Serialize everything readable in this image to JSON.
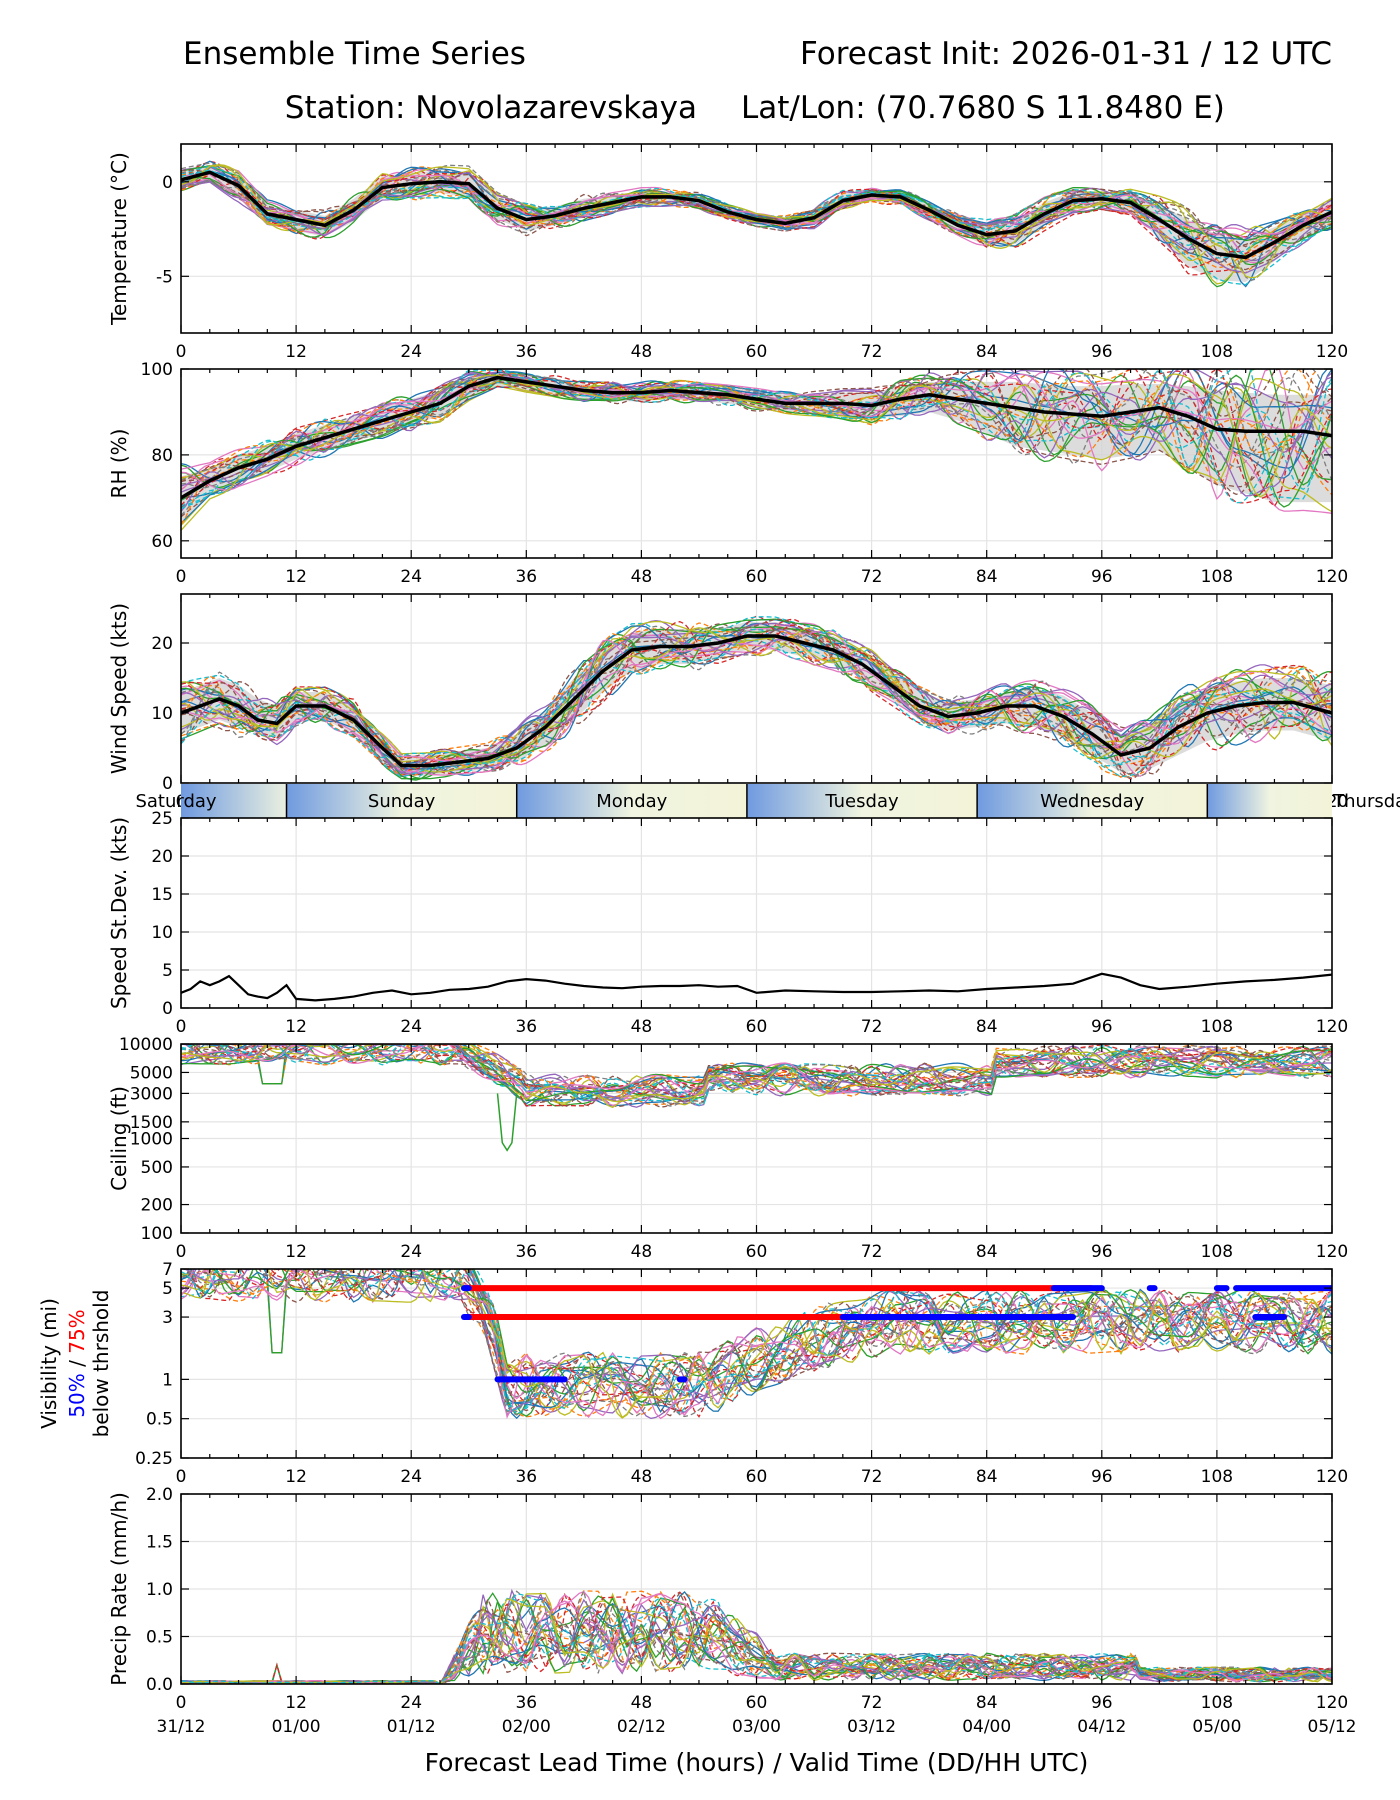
{
  "header": {
    "title_left": "Ensemble Time Series",
    "title_right": "Forecast Init: 2026-01-31 / 12 UTC",
    "station": "Station: Novolazarevskaya",
    "latlon": "Lat/Lon: (70.7680 S 11.8480 E)"
  },
  "chart_data": [
    {
      "id": "temperature",
      "type": "line",
      "ylabel": "Temperature (°C)",
      "xlim": [
        0,
        120
      ],
      "ylim": [
        -8,
        2
      ],
      "ytick_values": [
        0,
        -5
      ],
      "ytick_labels": [
        "0",
        "-5"
      ],
      "xtick_labels": [
        "0",
        "12",
        "24",
        "36",
        "48",
        "60",
        "72",
        "84",
        "96",
        "108",
        "120"
      ],
      "ensemble_mean": {
        "x": [
          0,
          3,
          6,
          9,
          12,
          15,
          18,
          21,
          24,
          27,
          30,
          33,
          36,
          39,
          42,
          45,
          48,
          51,
          54,
          57,
          60,
          63,
          66,
          69,
          72,
          75,
          78,
          81,
          84,
          87,
          90,
          93,
          96,
          99,
          102,
          105,
          108,
          111,
          114,
          117,
          120
        ],
        "y": [
          0.1,
          0.5,
          -0.2,
          -1.7,
          -2.0,
          -2.3,
          -1.5,
          -0.3,
          -0.1,
          0.0,
          -0.1,
          -1.4,
          -2.0,
          -1.8,
          -1.4,
          -1.1,
          -0.8,
          -0.8,
          -1.0,
          -1.6,
          -2.0,
          -2.2,
          -1.9,
          -1.0,
          -0.7,
          -0.8,
          -1.5,
          -2.3,
          -2.8,
          -2.6,
          -1.7,
          -1.0,
          -0.9,
          -1.1,
          -2.0,
          -3.0,
          -3.8,
          -4.0,
          -3.2,
          -2.3,
          -1.6
        ]
      },
      "spread_low": [
        -0.3,
        0.1,
        -0.8,
        -2.2,
        -2.6,
        -2.9,
        -2.1,
        -0.9,
        -0.7,
        -0.6,
        -0.8,
        -2.0,
        -2.6,
        -2.3,
        -1.9,
        -1.5,
        -1.2,
        -1.2,
        -1.3,
        -1.9,
        -2.3,
        -2.5,
        -2.3,
        -1.4,
        -1.0,
        -1.1,
        -1.9,
        -2.7,
        -3.4,
        -3.3,
        -2.3,
        -1.5,
        -1.3,
        -1.6,
        -3.0,
        -4.5,
        -5.2,
        -5.3,
        -4.2,
        -3.0,
        -2.2
      ],
      "spread_high": [
        0.5,
        0.9,
        0.4,
        -1.2,
        -1.5,
        -1.8,
        -0.9,
        0.3,
        0.5,
        0.6,
        0.5,
        -0.8,
        -1.4,
        -1.3,
        -0.9,
        -0.7,
        -0.5,
        -0.5,
        -0.7,
        -1.3,
        -1.8,
        -1.9,
        -1.5,
        -0.6,
        -0.4,
        -0.5,
        -1.1,
        -1.9,
        -2.3,
        -2.0,
        -1.1,
        -0.5,
        -0.5,
        -0.6,
        -1.2,
        -2.0,
        -2.8,
        -3.0,
        -2.4,
        -1.7,
        -1.0
      ]
    },
    {
      "id": "rh",
      "type": "line",
      "ylabel": "RH (%)",
      "xlim": [
        0,
        120
      ],
      "ylim": [
        56,
        100
      ],
      "ytick_values": [
        60,
        80,
        100
      ],
      "ytick_labels": [
        "60",
        "80",
        "100"
      ],
      "xtick_labels": [
        "0",
        "12",
        "24",
        "36",
        "48",
        "60",
        "72",
        "84",
        "96",
        "108",
        "120"
      ],
      "ensemble_mean": {
        "x": [
          0,
          3,
          6,
          9,
          12,
          15,
          18,
          21,
          24,
          27,
          30,
          33,
          36,
          39,
          42,
          45,
          48,
          51,
          54,
          57,
          60,
          63,
          66,
          69,
          72,
          75,
          78,
          81,
          84,
          87,
          90,
          93,
          96,
          99,
          102,
          105,
          108,
          111,
          114,
          117,
          120
        ],
        "y": [
          70,
          74,
          77,
          79,
          82,
          84,
          86,
          88,
          90,
          92,
          96,
          98,
          97,
          96,
          95,
          94.5,
          94.5,
          95,
          94.5,
          94,
          93,
          92,
          92,
          92,
          91.5,
          93,
          94,
          93,
          92,
          91,
          90,
          89.5,
          89,
          90,
          91,
          89,
          86,
          85.5,
          85.5,
          85.5,
          84.5
        ]
      },
      "spread_low": [
        64,
        71,
        74,
        76,
        79,
        81,
        83,
        85,
        87,
        89,
        93,
        96,
        95,
        94,
        93,
        92.5,
        92.5,
        93,
        92.5,
        92,
        91,
        90,
        90,
        89.5,
        88.5,
        89,
        90,
        88,
        85,
        82,
        81,
        80,
        79,
        80,
        81,
        77,
        73,
        71,
        69,
        69,
        69
      ],
      "spread_high": [
        75,
        77,
        80,
        82,
        85,
        87,
        89,
        91,
        93,
        95,
        98,
        99,
        98.5,
        97.5,
        96.5,
        96,
        96,
        96.5,
        96,
        95.5,
        95,
        94,
        94,
        94.5,
        94.5,
        96,
        97,
        97,
        97,
        97,
        96.5,
        96,
        96,
        96.5,
        96.5,
        96,
        95,
        94.5,
        94,
        94,
        94
      ]
    },
    {
      "id": "wind_speed",
      "type": "line",
      "ylabel": "Wind Speed (kts)",
      "xlim": [
        0,
        120
      ],
      "ylim": [
        0,
        27
      ],
      "ytick_values": [
        0,
        10,
        20
      ],
      "ytick_labels": [
        "0",
        "10",
        "20"
      ],
      "xtick_labels": [
        "0",
        "12",
        "24",
        "36",
        "48",
        "60",
        "72",
        "84",
        "96",
        "108",
        "120"
      ],
      "ensemble_mean": {
        "x": [
          0,
          2,
          4,
          6,
          8,
          10,
          12,
          15,
          18,
          21,
          23,
          26,
          29,
          32,
          35,
          38,
          41,
          44,
          47,
          50,
          53,
          56,
          59,
          62,
          65,
          68,
          71,
          74,
          77,
          80,
          83,
          86,
          89,
          92,
          95,
          98,
          101,
          104,
          107,
          110,
          113,
          116,
          120
        ],
        "y": [
          10,
          11,
          12,
          11,
          9,
          8.5,
          11,
          11,
          9,
          5,
          2.5,
          2.5,
          3,
          3.5,
          5,
          8,
          12,
          16,
          19,
          19.5,
          19.5,
          20,
          21,
          21,
          20,
          19,
          17,
          14,
          11,
          9.5,
          10,
          11,
          11,
          9.5,
          7,
          4,
          5,
          8,
          10,
          11,
          11.5,
          11.5,
          10
        ]
      },
      "spread_low": [
        7,
        8,
        9,
        8,
        7,
        6.5,
        9,
        9,
        7,
        3,
        1,
        1,
        1.5,
        2,
        3,
        5.5,
        9,
        13,
        16,
        17,
        17,
        18,
        19,
        19,
        18,
        17,
        15,
        12,
        9,
        7.5,
        8,
        8.5,
        8,
        6.5,
        4,
        1.5,
        2,
        4,
        6,
        7,
        7.5,
        7.5,
        6
      ],
      "spread_high": [
        13,
        14,
        15,
        14,
        12,
        11,
        13,
        13,
        11,
        7,
        4,
        4,
        4.5,
        5,
        7,
        10.5,
        15,
        19,
        21.5,
        22,
        22,
        22,
        23,
        23,
        22,
        21,
        19,
        16,
        13,
        11.5,
        12,
        13,
        13.5,
        12.5,
        10,
        7,
        8.5,
        11.5,
        13.5,
        14.5,
        15,
        15,
        14
      ],
      "days": [
        "Saturday",
        "Sunday",
        "Monday",
        "Tuesday",
        "Wednesday",
        "Thursday"
      ]
    },
    {
      "id": "speed_stdev",
      "type": "line",
      "ylabel": "Speed St.Dev. (kts)",
      "xlim": [
        0,
        120
      ],
      "ylim": [
        0,
        25
      ],
      "ytick_values": [
        0,
        5,
        10,
        15,
        20,
        25
      ],
      "ytick_labels": [
        "0",
        "5",
        "10",
        "15",
        "20",
        "25"
      ],
      "xtick_labels": [
        "0",
        "12",
        "24",
        "36",
        "48",
        "60",
        "72",
        "84",
        "96",
        "108",
        "120"
      ],
      "series": {
        "x": [
          0,
          1,
          2,
          3,
          4,
          5,
          6,
          7,
          8,
          9,
          10,
          11,
          12,
          14,
          16,
          18,
          20,
          22,
          24,
          26,
          28,
          30,
          32,
          34,
          36,
          38,
          40,
          42,
          44,
          46,
          48,
          50,
          52,
          54,
          56,
          58,
          60,
          63,
          66,
          69,
          72,
          75,
          78,
          81,
          84,
          87,
          90,
          93,
          96,
          98,
          100,
          102,
          105,
          108,
          111,
          114,
          117,
          120
        ],
        "y": [
          2.0,
          2.5,
          3.5,
          3.0,
          3.5,
          4.2,
          3.0,
          1.8,
          1.5,
          1.3,
          2.0,
          3.0,
          1.2,
          1.0,
          1.2,
          1.5,
          2.0,
          2.3,
          1.8,
          2.0,
          2.4,
          2.5,
          2.8,
          3.5,
          3.8,
          3.6,
          3.2,
          2.9,
          2.7,
          2.6,
          2.8,
          2.9,
          2.9,
          3.0,
          2.8,
          2.9,
          2.0,
          2.3,
          2.2,
          2.1,
          2.1,
          2.2,
          2.3,
          2.2,
          2.5,
          2.7,
          2.9,
          3.2,
          4.5,
          4.0,
          3.0,
          2.5,
          2.8,
          3.2,
          3.5,
          3.7,
          4.0,
          4.4
        ]
      }
    },
    {
      "id": "ceiling",
      "type": "line",
      "ylabel": "Ceiling (ft)",
      "yscale": "log",
      "xlim": [
        0,
        120
      ],
      "ylim": [
        100,
        10000
      ],
      "ytick_values": [
        100,
        200,
        500,
        1000,
        1500,
        3000,
        5000,
        10000
      ],
      "ytick_labels": [
        "100",
        "200",
        "500",
        "1000",
        "1500",
        "3000",
        "5000",
        "10000"
      ],
      "xtick_labels": [
        "0",
        "12",
        "24",
        "36",
        "48",
        "60",
        "72",
        "84",
        "96",
        "108",
        "120"
      ],
      "low_member": {
        "x": [
          33,
          33.5,
          34,
          34.5,
          35
        ],
        "y": [
          3000,
          900,
          750,
          900,
          3000
        ]
      }
    },
    {
      "id": "visibility",
      "type": "line",
      "ylabel": "Visibility (mi)",
      "yscale": "log",
      "ylabel_50": "50%",
      "ylabel_slash": " / ",
      "ylabel_75": "75%",
      "ylabel_sub": "below thrshold",
      "xlim": [
        0,
        120
      ],
      "ylim": [
        0.25,
        7
      ],
      "ytick_values": [
        0.25,
        0.5,
        1,
        3,
        5,
        7
      ],
      "ytick_labels": [
        "0.25",
        "0.5",
        "1",
        "3",
        "5",
        "7"
      ],
      "xtick_labels": [
        "0",
        "12",
        "24",
        "36",
        "48",
        "60",
        "72",
        "84",
        "96",
        "108",
        "120"
      ],
      "threshold_bars_75": [
        {
          "threshold": 5,
          "x0": 29.5,
          "x1": 95
        },
        {
          "threshold": 3,
          "x0": 29.5,
          "x1": 93
        }
      ],
      "threshold_bars_50": [
        {
          "threshold": 5,
          "x0": 29.5,
          "x1": 30
        },
        {
          "threshold": 5,
          "x0": 91,
          "x1": 96
        },
        {
          "threshold": 5,
          "x0": 101,
          "x1": 101.5
        },
        {
          "threshold": 5,
          "x0": 108,
          "x1": 109
        },
        {
          "threshold": 5,
          "x0": 110,
          "x1": 120
        },
        {
          "threshold": 3,
          "x0": 29.5,
          "x1": 30
        },
        {
          "threshold": 3,
          "x0": 69,
          "x1": 93
        },
        {
          "threshold": 3,
          "x0": 112,
          "x1": 115
        },
        {
          "threshold": 1,
          "x0": 33,
          "x1": 40
        },
        {
          "threshold": 1,
          "x0": 52,
          "x1": 52.5
        }
      ]
    },
    {
      "id": "precip_rate",
      "type": "line",
      "ylabel": "Precip Rate (mm/h)",
      "xlim": [
        0,
        120
      ],
      "ylim": [
        0,
        2.0
      ],
      "ytick_values": [
        0.0,
        0.5,
        1.0,
        1.5,
        2.0
      ],
      "ytick_labels": [
        "0.0",
        "0.5",
        "1.0",
        "1.5",
        "2.0"
      ],
      "xtick_labels": [
        "0",
        "12",
        "24",
        "36",
        "48",
        "60",
        "72",
        "84",
        "96",
        "108",
        "120"
      ],
      "valid_time_labels": [
        "31/12",
        "01/00",
        "01/12",
        "02/00",
        "02/12",
        "03/00",
        "03/12",
        "04/00",
        "04/12",
        "05/00",
        "05/12"
      ],
      "xlabel": "Forecast Lead Time (hours) / Valid Time (DD/HH UTC)"
    }
  ]
}
